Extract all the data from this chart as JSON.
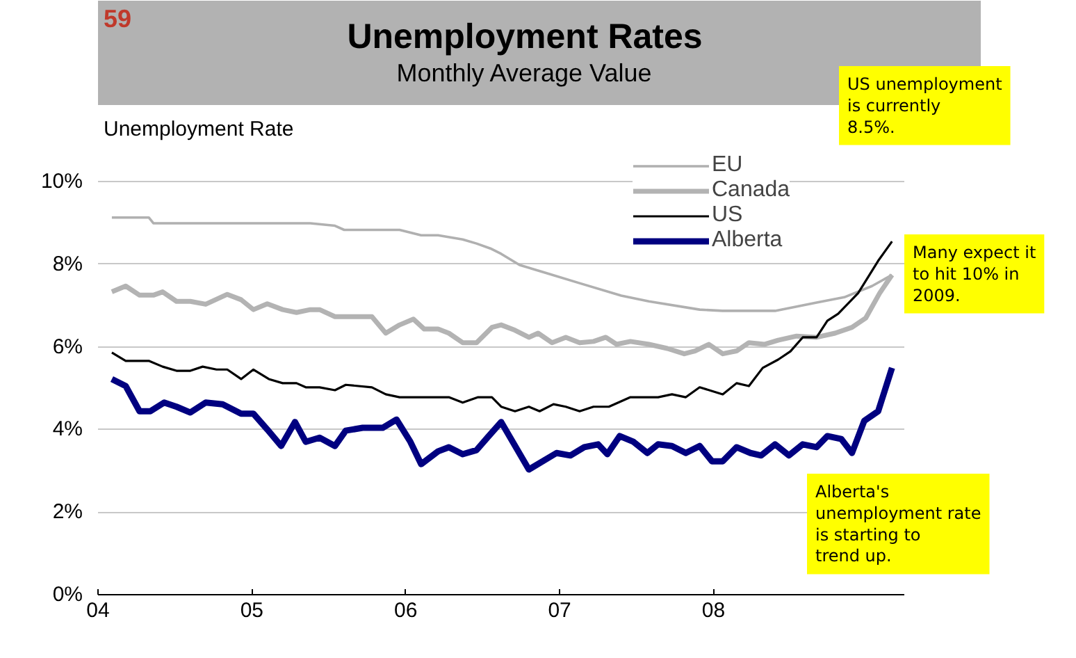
{
  "chart_data": {
    "type": "line",
    "title": "Unemployment Rates",
    "subtitle": "Monthly Average Value",
    "ylabel": "Unemployment Rate",
    "annotations": [
      "59",
      "US unemployment is currently 8.5%.",
      "Many expect it to hit 10% in 2009.",
      "Alberta's unemployment rate is starting to trend up."
    ],
    "xlim": [
      2004,
      2009.24
    ],
    "xticks": [
      {
        "value": 2004,
        "label": "04"
      },
      {
        "value": 2005,
        "label": "05"
      },
      {
        "value": 2006,
        "label": "06"
      },
      {
        "value": 2007,
        "label": "07"
      },
      {
        "value": 2008,
        "label": "08"
      }
    ],
    "ylim": [
      0,
      10
    ],
    "yticks": [
      {
        "value": 0,
        "label": "0%"
      },
      {
        "value": 2,
        "label": "2%"
      },
      {
        "value": 4,
        "label": "4%"
      },
      {
        "value": 6,
        "label": "6%"
      },
      {
        "value": 8,
        "label": "8%"
      },
      {
        "value": 10,
        "label": "10%"
      }
    ],
    "grid": "y",
    "legend": "top right",
    "series": [
      {
        "name": "EU",
        "color": "#b0b0b0",
        "x": [
          2004.09,
          2004.33,
          2004.36,
          2005.38,
          2005.54,
          2005.6,
          2005.96,
          2006.1,
          2006.21,
          2006.37,
          2006.46,
          2006.55,
          2006.62,
          2006.74,
          2006.89,
          2007.13,
          2007.4,
          2007.58,
          2007.91,
          2008.06,
          2008.4,
          2008.67,
          2008.85,
          2009.03,
          2009.16
        ],
        "values": [
          9.13,
          9.13,
          8.99,
          8.99,
          8.93,
          8.83,
          8.83,
          8.7,
          8.7,
          8.6,
          8.5,
          8.38,
          8.25,
          7.98,
          7.81,
          7.54,
          7.24,
          7.1,
          6.9,
          6.87,
          6.87,
          7.07,
          7.2,
          7.47,
          7.74
        ]
      },
      {
        "name": "Canada",
        "color": "#b3b3b3",
        "x": [
          2004.09,
          2004.18,
          2004.27,
          2004.36,
          2004.42,
          2004.51,
          2004.6,
          2004.7,
          2004.84,
          2004.93,
          2005.01,
          2005.1,
          2005.2,
          2005.29,
          2005.38,
          2005.44,
          2005.54,
          2005.78,
          2005.87,
          2005.96,
          2006.05,
          2006.12,
          2006.21,
          2006.28,
          2006.37,
          2006.46,
          2006.56,
          2006.62,
          2006.71,
          2006.8,
          2006.86,
          2006.95,
          2007.04,
          2007.13,
          2007.22,
          2007.3,
          2007.37,
          2007.46,
          2007.58,
          2007.7,
          2007.81,
          2007.88,
          2007.97,
          2008.06,
          2008.15,
          2008.23,
          2008.33,
          2008.42,
          2008.54,
          2008.67,
          2008.79,
          2008.9,
          2008.99,
          2009.08,
          2009.16
        ],
        "values": [
          7.33,
          7.47,
          7.25,
          7.25,
          7.33,
          7.1,
          7.1,
          7.03,
          7.27,
          7.14,
          6.9,
          7.04,
          6.9,
          6.83,
          6.9,
          6.9,
          6.73,
          6.73,
          6.33,
          6.53,
          6.67,
          6.43,
          6.43,
          6.33,
          6.1,
          6.1,
          6.47,
          6.53,
          6.4,
          6.23,
          6.33,
          6.1,
          6.23,
          6.1,
          6.13,
          6.23,
          6.06,
          6.13,
          6.06,
          5.96,
          5.83,
          5.9,
          6.06,
          5.83,
          5.9,
          6.1,
          6.06,
          6.16,
          6.26,
          6.23,
          6.33,
          6.47,
          6.7,
          7.3,
          7.74
        ]
      },
      {
        "name": "US",
        "color": "#000000",
        "x": [
          2004.09,
          2004.18,
          2004.33,
          2004.42,
          2004.51,
          2004.6,
          2004.68,
          2004.77,
          2004.84,
          2004.93,
          2005.01,
          2005.11,
          2005.2,
          2005.29,
          2005.35,
          2005.44,
          2005.54,
          2005.61,
          2005.78,
          2005.87,
          2005.96,
          2006.28,
          2006.37,
          2006.47,
          2006.56,
          2006.62,
          2006.71,
          2006.8,
          2006.87,
          2006.96,
          2007.04,
          2007.13,
          2007.22,
          2007.32,
          2007.46,
          2007.64,
          2007.73,
          2007.82,
          2007.91,
          2008.06,
          2008.15,
          2008.23,
          2008.32,
          2008.42,
          2008.5,
          2008.58,
          2008.67,
          2008.74,
          2008.81,
          2008.94,
          2009.07,
          2009.16
        ],
        "values": [
          5.86,
          5.66,
          5.66,
          5.52,
          5.42,
          5.42,
          5.52,
          5.45,
          5.45,
          5.22,
          5.45,
          5.22,
          5.12,
          5.12,
          5.02,
          5.02,
          4.95,
          5.08,
          5.02,
          4.85,
          4.78,
          4.78,
          4.65,
          4.78,
          4.78,
          4.55,
          4.44,
          4.55,
          4.44,
          4.61,
          4.55,
          4.44,
          4.55,
          4.55,
          4.78,
          4.78,
          4.85,
          4.78,
          5.02,
          4.85,
          5.12,
          5.05,
          5.49,
          5.69,
          5.89,
          6.23,
          6.23,
          6.63,
          6.8,
          7.3,
          8.08,
          8.55
        ]
      },
      {
        "name": "Alberta",
        "color": "#000080",
        "x": [
          2004.09,
          2004.18,
          2004.27,
          2004.34,
          2004.43,
          2004.51,
          2004.6,
          2004.7,
          2004.81,
          2004.93,
          2005.01,
          2005.1,
          2005.19,
          2005.28,
          2005.35,
          2005.44,
          2005.54,
          2005.61,
          2005.72,
          2005.85,
          2005.94,
          2006.03,
          2006.1,
          2006.21,
          2006.28,
          2006.37,
          2006.46,
          2006.53,
          2006.62,
          2006.8,
          2006.98,
          2007.07,
          2007.16,
          2007.25,
          2007.31,
          2007.39,
          2007.48,
          2007.57,
          2007.64,
          2007.73,
          2007.82,
          2007.91,
          2007.99,
          2008.06,
          2008.15,
          2008.24,
          2008.31,
          2008.4,
          2008.49,
          2008.58,
          2008.67,
          2008.74,
          2008.83,
          2008.9,
          2008.98,
          2009.07,
          2009.16
        ],
        "values": [
          5.22,
          5.05,
          4.44,
          4.44,
          4.65,
          4.55,
          4.41,
          4.65,
          4.61,
          4.38,
          4.38,
          4.0,
          3.6,
          4.18,
          3.7,
          3.8,
          3.6,
          3.97,
          4.04,
          4.04,
          4.24,
          3.7,
          3.16,
          3.47,
          3.57,
          3.4,
          3.5,
          3.8,
          4.18,
          3.03,
          3.43,
          3.37,
          3.57,
          3.64,
          3.4,
          3.84,
          3.7,
          3.43,
          3.64,
          3.6,
          3.43,
          3.6,
          3.23,
          3.23,
          3.57,
          3.43,
          3.37,
          3.64,
          3.37,
          3.64,
          3.57,
          3.84,
          3.77,
          3.43,
          4.21,
          4.44,
          5.49
        ]
      }
    ]
  }
}
